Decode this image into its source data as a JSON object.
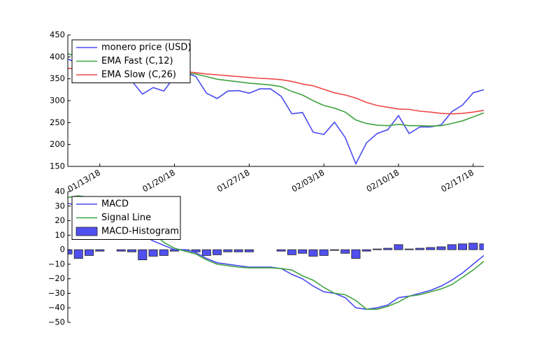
{
  "chart_data": [
    {
      "type": "line",
      "x": [
        "2018-01-10",
        "2018-01-11",
        "2018-01-12",
        "2018-01-13",
        "2018-01-14",
        "2018-01-15",
        "2018-01-16",
        "2018-01-17",
        "2018-01-18",
        "2018-01-19",
        "2018-01-20",
        "2018-01-21",
        "2018-01-22",
        "2018-01-23",
        "2018-01-24",
        "2018-01-25",
        "2018-01-26",
        "2018-01-27",
        "2018-01-28",
        "2018-01-29",
        "2018-01-30",
        "2018-01-31",
        "2018-02-01",
        "2018-02-02",
        "2018-02-03",
        "2018-02-04",
        "2018-02-05",
        "2018-02-06",
        "2018-02-07",
        "2018-02-08",
        "2018-02-09",
        "2018-02-10",
        "2018-02-11",
        "2018-02-12",
        "2018-02-13",
        "2018-02-14",
        "2018-02-15",
        "2018-02-16",
        "2018-02-17",
        "2018-02-18"
      ],
      "xlim": [
        "2018-01-10",
        "2018-02-18"
      ],
      "xticks": [
        {
          "value": "2018-01-13",
          "label": "01/13/18"
        },
        {
          "value": "2018-01-20",
          "label": "01/20/18"
        },
        {
          "value": "2018-01-27",
          "label": "01/27/18"
        },
        {
          "value": "2018-02-03",
          "label": "02/03/18"
        },
        {
          "value": "2018-02-10",
          "label": "02/10/18"
        },
        {
          "value": "2018-02-17",
          "label": "02/17/18"
        }
      ],
      "ylim": [
        150,
        450
      ],
      "yticks": [
        150,
        200,
        250,
        300,
        350,
        400,
        450
      ],
      "legend": "upper left",
      "series": [
        {
          "name": "monero price (USD)",
          "color": "#4a4af0",
          "values": [
            395,
            385,
            375,
            370,
            372,
            365,
            345,
            315,
            330,
            322,
            355,
            365,
            355,
            317,
            305,
            322,
            323,
            317,
            327,
            327,
            310,
            270,
            273,
            228,
            223,
            251,
            216,
            156,
            204,
            225,
            234,
            266,
            225,
            240,
            240,
            245,
            275,
            290,
            318,
            325
          ]
        },
        {
          "name": "EMA Fast (C,12)",
          "color": "#3fa33f",
          "values": [
            407,
            400,
            392,
            386,
            381,
            378,
            370,
            364,
            360,
            358,
            362,
            362,
            361,
            355,
            349,
            346,
            343,
            340,
            338,
            336,
            332,
            321,
            313,
            300,
            289,
            283,
            274,
            256,
            248,
            244,
            243,
            246,
            243,
            243,
            242,
            243,
            248,
            254,
            263,
            272
          ]
        },
        {
          "name": "EMA Slow (C,26)",
          "color": "#f04848",
          "values": [
            374,
            372,
            371,
            370,
            369,
            368,
            367,
            367,
            367,
            367,
            367,
            366,
            364,
            361,
            359,
            357,
            355,
            353,
            351,
            350,
            348,
            344,
            338,
            334,
            326,
            318,
            313,
            306,
            296,
            289,
            285,
            281,
            280,
            276,
            274,
            271,
            270,
            271,
            274,
            278
          ]
        }
      ]
    },
    {
      "type": "line",
      "x": [
        "2018-01-10",
        "2018-01-11",
        "2018-01-12",
        "2018-01-13",
        "2018-01-14",
        "2018-01-15",
        "2018-01-16",
        "2018-01-17",
        "2018-01-18",
        "2018-01-19",
        "2018-01-20",
        "2018-01-21",
        "2018-01-22",
        "2018-01-23",
        "2018-01-24",
        "2018-01-25",
        "2018-01-26",
        "2018-01-27",
        "2018-01-28",
        "2018-01-29",
        "2018-01-30",
        "2018-01-31",
        "2018-02-01",
        "2018-02-02",
        "2018-02-03",
        "2018-02-04",
        "2018-02-05",
        "2018-02-06",
        "2018-02-07",
        "2018-02-08",
        "2018-02-09",
        "2018-02-10",
        "2018-02-11",
        "2018-02-12",
        "2018-02-13",
        "2018-02-14",
        "2018-02-15",
        "2018-02-16",
        "2018-02-17",
        "2018-02-18"
      ],
      "xlim": [
        "2018-01-10",
        "2018-02-18"
      ],
      "ylim": [
        -50,
        40
      ],
      "yticks": [
        {
          "value": -50,
          "label": "−50"
        },
        {
          "value": -40,
          "label": "−40"
        },
        {
          "value": -30,
          "label": "−30"
        },
        {
          "value": -20,
          "label": "−20"
        },
        {
          "value": -10,
          "label": "−10"
        },
        0,
        10,
        20,
        30,
        40
      ],
      "legend": "upper left",
      "series": [
        {
          "name": "MACD",
          "color": "#4a4af0",
          "values": [
            32,
            30,
            27,
            24,
            22,
            20,
            16,
            10,
            6,
            3,
            0,
            0,
            -2,
            -6,
            -9,
            -10,
            -11,
            -12,
            -12,
            -12,
            -13,
            -17,
            -20,
            -25,
            -29,
            -30,
            -33,
            -40,
            -41,
            -40,
            -38,
            -33,
            -32,
            -30,
            -28,
            -25,
            -21,
            -16,
            -10,
            -4
          ]
        },
        {
          "name": "Signal Line",
          "color": "#3fa33f",
          "values": [
            36,
            37,
            36,
            35,
            33,
            30,
            26,
            20,
            12,
            5,
            1,
            -1,
            -3,
            -7,
            -10,
            -11,
            -12,
            -12.5,
            -12.5,
            -12.5,
            -13,
            -14,
            -18,
            -21,
            -26,
            -30,
            -31,
            -35,
            -41,
            -41,
            -39,
            -36,
            -32,
            -31,
            -29,
            -27,
            -24,
            -19,
            -14,
            -8
          ]
        },
        {
          "name": "MACD-Histogram",
          "type": "bar",
          "color": "#5050f0",
          "values": [
            -3,
            -6,
            -4,
            -1,
            0,
            -1,
            -1.5,
            -7,
            -4.5,
            -4,
            -1,
            -0.5,
            -1.5,
            -4,
            -3.5,
            -1.5,
            -1.5,
            -1.5,
            0,
            0,
            -1,
            -3.5,
            -2.5,
            -4.5,
            -4,
            -0.5,
            -2.5,
            -6,
            -1,
            0.5,
            1,
            3.5,
            0.5,
            1,
            1.5,
            2,
            3.5,
            4,
            4.5,
            4
          ]
        }
      ]
    }
  ]
}
